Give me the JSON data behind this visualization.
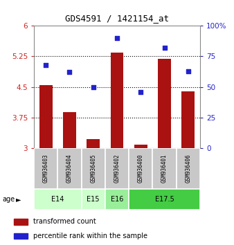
{
  "title": "GDS4591 / 1421154_at",
  "samples": [
    "GSM936403",
    "GSM936404",
    "GSM936405",
    "GSM936402",
    "GSM936400",
    "GSM936401",
    "GSM936406"
  ],
  "transformed_counts": [
    4.55,
    3.88,
    3.22,
    5.35,
    3.08,
    5.19,
    4.4
  ],
  "percentile_ranks": [
    68,
    62,
    50,
    90,
    46,
    82,
    63
  ],
  "ylim_left": [
    3,
    6
  ],
  "ylim_right": [
    0,
    100
  ],
  "yticks_left": [
    3,
    3.75,
    4.5,
    5.25,
    6
  ],
  "yticks_right": [
    0,
    25,
    50,
    75,
    100
  ],
  "age_groups": [
    {
      "label": "E14",
      "color": "#ccffcc",
      "start": 0,
      "end": 2
    },
    {
      "label": "E15",
      "color": "#ccffcc",
      "start": 2,
      "end": 3
    },
    {
      "label": "E16",
      "color": "#99ee99",
      "start": 3,
      "end": 4
    },
    {
      "label": "E17.5",
      "color": "#44cc44",
      "start": 4,
      "end": 7
    }
  ],
  "bar_color": "#aa1111",
  "dot_color": "#2222cc",
  "left_axis_color": "#cc2222",
  "right_axis_color": "#2222cc"
}
